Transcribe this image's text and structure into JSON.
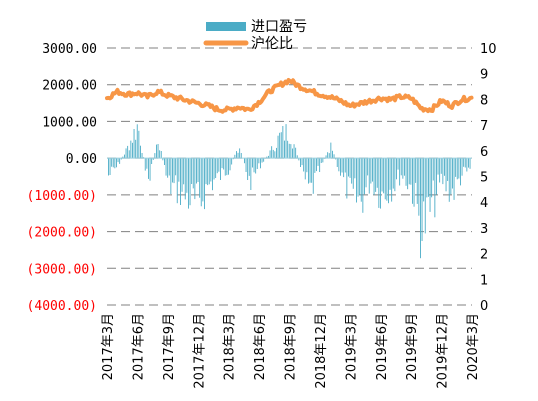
{
  "chart_data": {
    "type": "bar+line",
    "title": "",
    "legend": {
      "placement": "top-center",
      "entries": [
        {
          "label": "进口盈亏",
          "color": "#4bacc6",
          "marker": "bar"
        },
        {
          "label": "沪伦比",
          "color": "#f79646",
          "marker": "line"
        }
      ]
    },
    "grid": {
      "horizontal": true,
      "style": "dashed",
      "color": "#808080"
    },
    "y_left": {
      "ylim": [
        -4000,
        3000
      ],
      "ticks": [
        {
          "label": "3000.00",
          "color": "#000000"
        },
        {
          "label": "2000.00",
          "color": "#000000"
        },
        {
          "label": "1000.00",
          "color": "#000000"
        },
        {
          "label": "0.00",
          "color": "#000000"
        },
        {
          "label": "(1000.00)",
          "color": "#ff0000"
        },
        {
          "label": "(2000.00)",
          "color": "#ff0000"
        },
        {
          "label": "(3000.00)",
          "color": "#ff0000"
        },
        {
          "label": "(4000.00)",
          "color": "#ff0000"
        }
      ]
    },
    "y_right": {
      "ylim": [
        0,
        10
      ],
      "ticks": [
        "10",
        "9",
        "8",
        "7",
        "6",
        "5",
        "4",
        "3",
        "2",
        "1",
        "0"
      ]
    },
    "x_axis": {
      "range": [
        "2017-03",
        "2020-03"
      ],
      "tick_labels": [
        "2017年3月",
        "2017年6月",
        "2017年9月",
        "2017年12月",
        "2018年3月",
        "2018年6月",
        "2018年9月",
        "2018年12月",
        "2019年3月",
        "2019年6月",
        "2019年9月",
        "2019年12月",
        "2020年3月"
      ],
      "label_rotation": "vertical"
    },
    "series": [
      {
        "name": "进口盈亏",
        "type": "bar",
        "axis": "left",
        "color": "#4bacc6",
        "monthly_approx": [
          {
            "x": "2017-03",
            "y": -700
          },
          {
            "x": "2017-04",
            "y": -300
          },
          {
            "x": "2017-05",
            "y": 400
          },
          {
            "x": "2017-06",
            "y": 1250
          },
          {
            "x": "2017-07",
            "y": -900
          },
          {
            "x": "2017-08",
            "y": 700
          },
          {
            "x": "2017-09",
            "y": -1000
          },
          {
            "x": "2017-10",
            "y": -1200
          },
          {
            "x": "2017-11",
            "y": -1500
          },
          {
            "x": "2017-12",
            "y": -1700
          },
          {
            "x": "2018-01",
            "y": -1000
          },
          {
            "x": "2018-02",
            "y": -700
          },
          {
            "x": "2018-03",
            "y": -400
          },
          {
            "x": "2018-04",
            "y": 500
          },
          {
            "x": "2018-05",
            "y": -900
          },
          {
            "x": "2018-06",
            "y": -300
          },
          {
            "x": "2018-07",
            "y": 200
          },
          {
            "x": "2018-08",
            "y": 800
          },
          {
            "x": "2018-09",
            "y": 1050
          },
          {
            "x": "2018-10",
            "y": -300
          },
          {
            "x": "2018-11",
            "y": -1300
          },
          {
            "x": "2018-12",
            "y": -400
          },
          {
            "x": "2019-01",
            "y": 500
          },
          {
            "x": "2019-02",
            "y": -600
          },
          {
            "x": "2019-03",
            "y": -1400
          },
          {
            "x": "2019-04",
            "y": -1600
          },
          {
            "x": "2019-05",
            "y": -800
          },
          {
            "x": "2019-06",
            "y": -1400
          },
          {
            "x": "2019-07",
            "y": -1100
          },
          {
            "x": "2019-08",
            "y": -600
          },
          {
            "x": "2019-09",
            "y": -1100
          },
          {
            "x": "2019-10",
            "y": -2700
          },
          {
            "x": "2019-11",
            "y": -1800
          },
          {
            "x": "2019-12",
            "y": -800
          },
          {
            "x": "2020-01",
            "y": -1300
          },
          {
            "x": "2020-02",
            "y": -600
          },
          {
            "x": "2020-03",
            "y": -400
          }
        ]
      },
      {
        "name": "沪伦比",
        "type": "line",
        "axis": "right",
        "color": "#f79646",
        "monthly_approx": [
          {
            "x": "2017-03",
            "y": 8.05
          },
          {
            "x": "2017-04",
            "y": 8.3
          },
          {
            "x": "2017-05",
            "y": 8.2
          },
          {
            "x": "2017-06",
            "y": 8.25
          },
          {
            "x": "2017-07",
            "y": 8.1
          },
          {
            "x": "2017-08",
            "y": 8.3
          },
          {
            "x": "2017-09",
            "y": 8.15
          },
          {
            "x": "2017-10",
            "y": 8.05
          },
          {
            "x": "2017-11",
            "y": 7.95
          },
          {
            "x": "2017-12",
            "y": 7.85
          },
          {
            "x": "2018-01",
            "y": 7.75
          },
          {
            "x": "2018-02",
            "y": 7.6
          },
          {
            "x": "2018-03",
            "y": 7.6
          },
          {
            "x": "2018-04",
            "y": 7.7
          },
          {
            "x": "2018-05",
            "y": 7.6
          },
          {
            "x": "2018-06",
            "y": 7.9
          },
          {
            "x": "2018-07",
            "y": 8.3
          },
          {
            "x": "2018-08",
            "y": 8.55
          },
          {
            "x": "2018-09",
            "y": 8.75
          },
          {
            "x": "2018-10",
            "y": 8.5
          },
          {
            "x": "2018-11",
            "y": 8.35
          },
          {
            "x": "2018-12",
            "y": 8.2
          },
          {
            "x": "2019-01",
            "y": 8.1
          },
          {
            "x": "2019-02",
            "y": 7.95
          },
          {
            "x": "2019-03",
            "y": 7.75
          },
          {
            "x": "2019-04",
            "y": 7.85
          },
          {
            "x": "2019-05",
            "y": 7.95
          },
          {
            "x": "2019-06",
            "y": 8.05
          },
          {
            "x": "2019-07",
            "y": 8.0
          },
          {
            "x": "2019-08",
            "y": 8.1
          },
          {
            "x": "2019-09",
            "y": 8.05
          },
          {
            "x": "2019-10",
            "y": 7.65
          },
          {
            "x": "2019-11",
            "y": 7.6
          },
          {
            "x": "2019-12",
            "y": 7.95
          },
          {
            "x": "2020-01",
            "y": 7.75
          },
          {
            "x": "2020-02",
            "y": 8.0
          },
          {
            "x": "2020-03",
            "y": 8.05
          }
        ]
      }
    ]
  }
}
